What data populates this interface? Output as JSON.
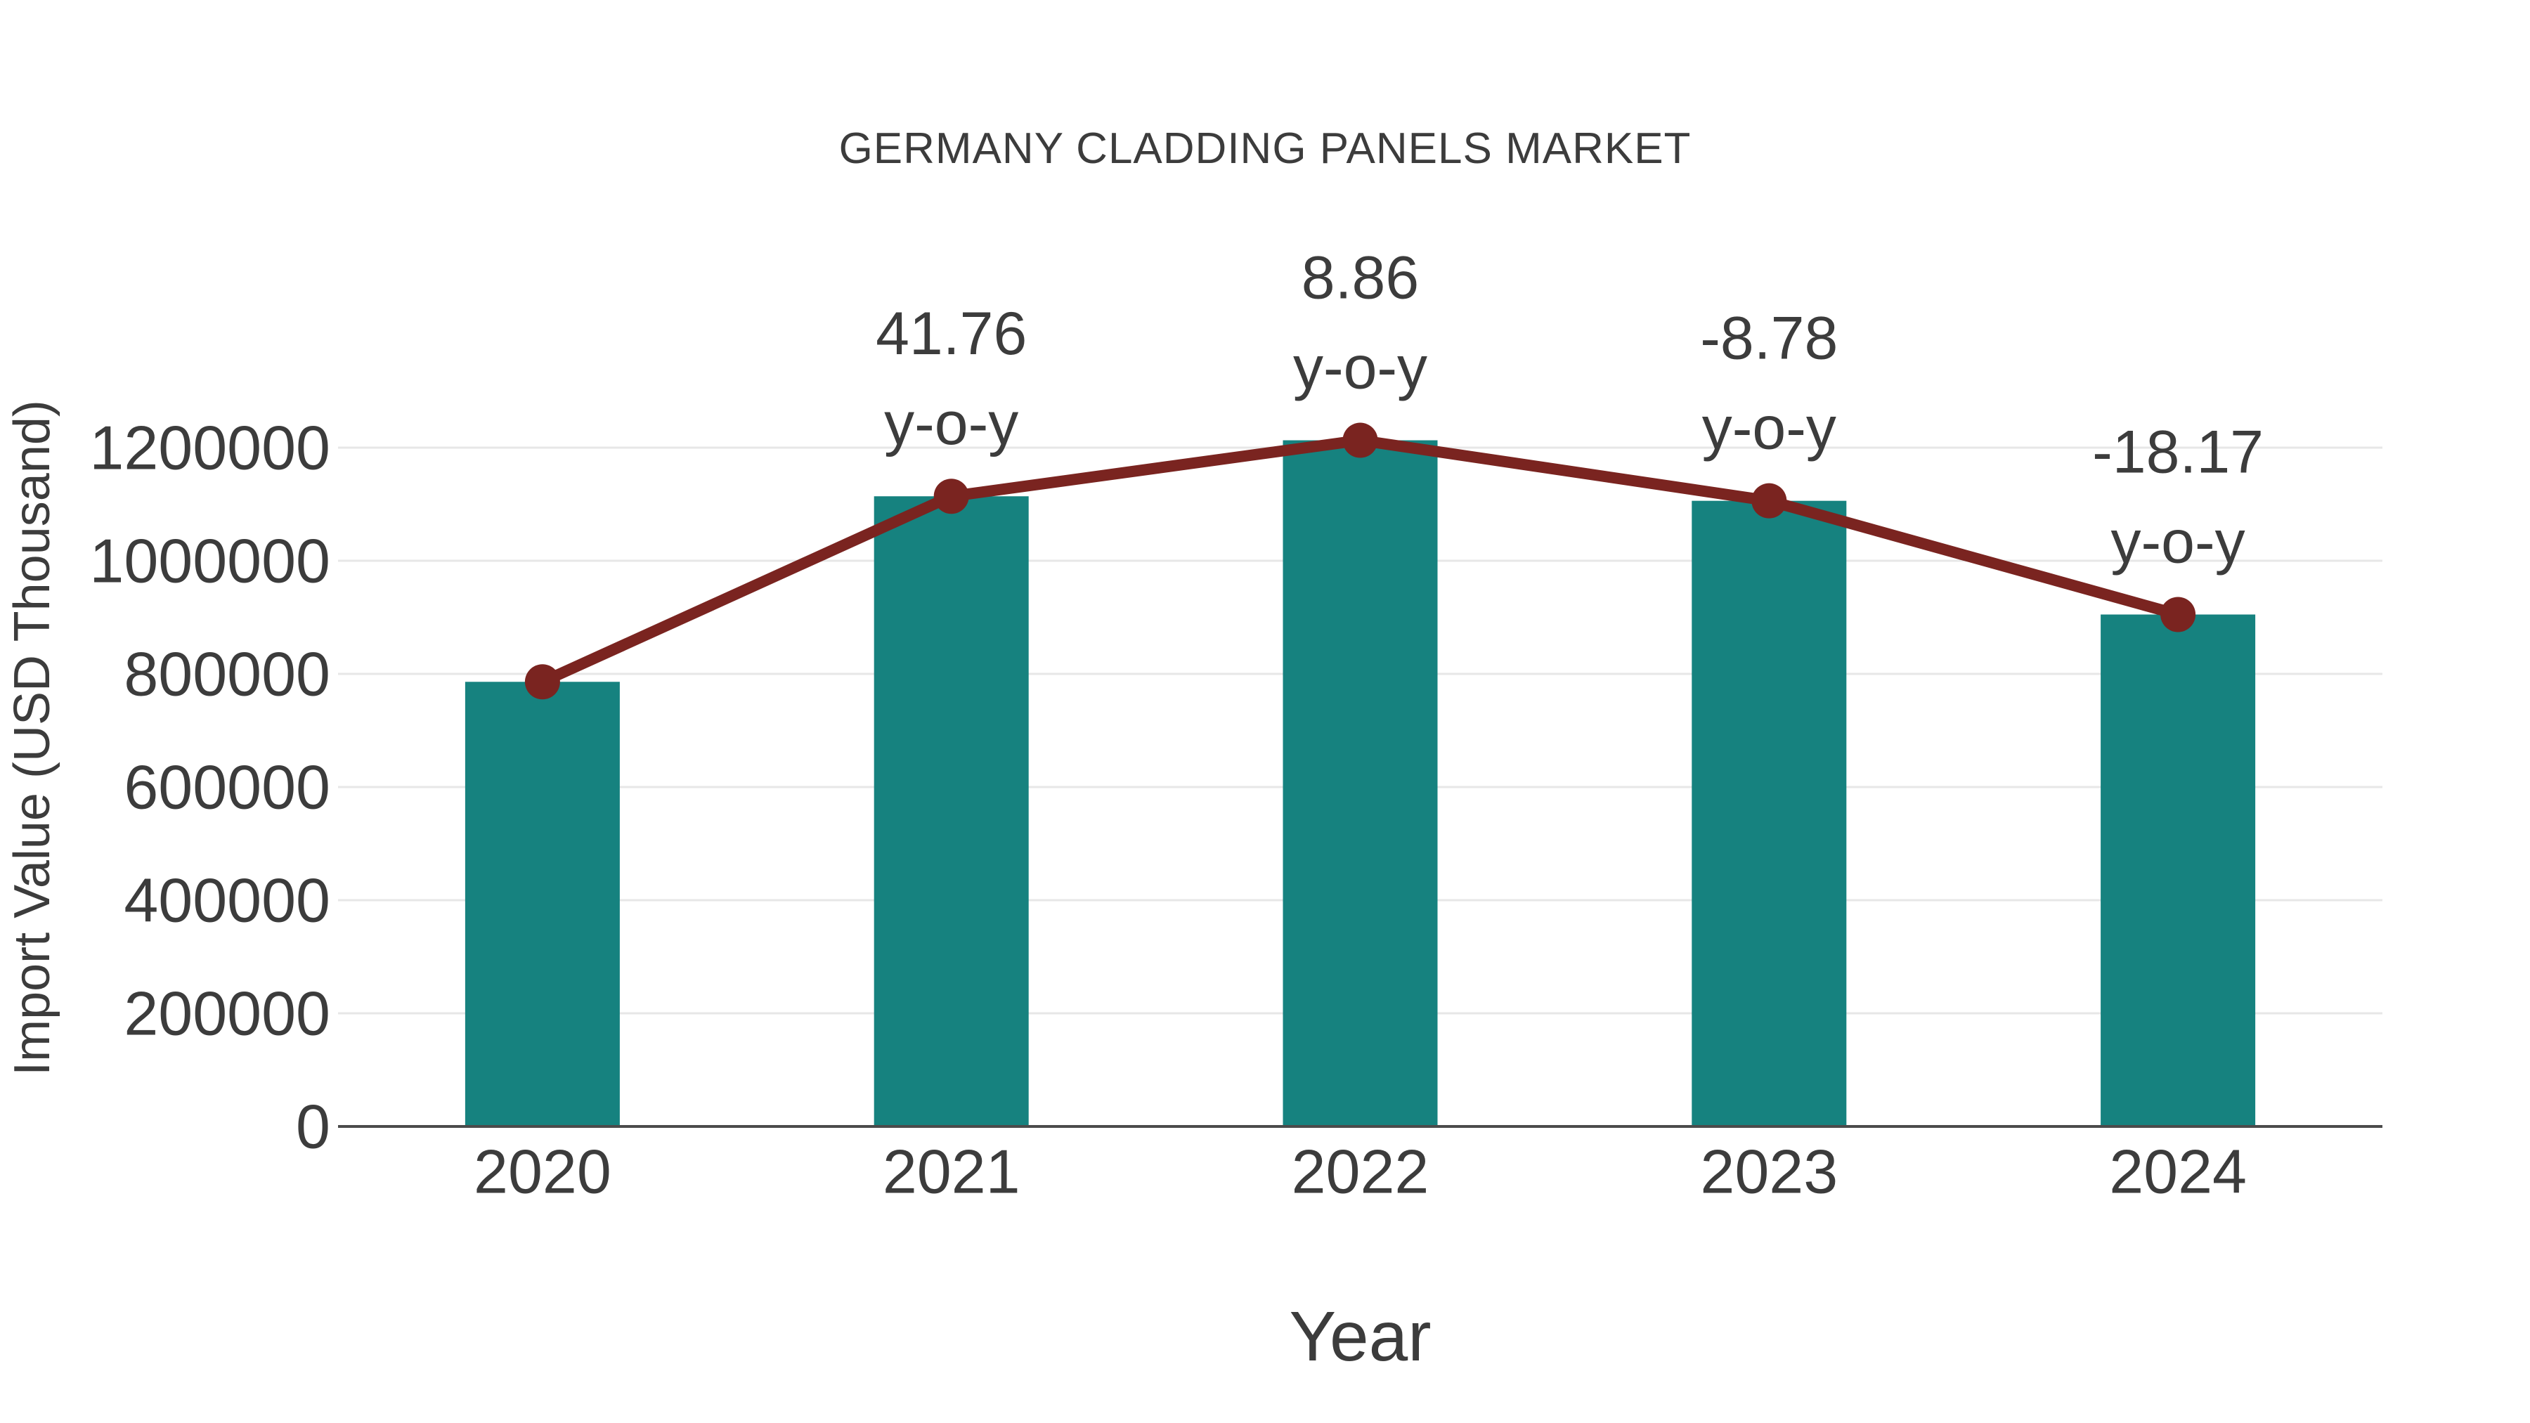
{
  "title": "GERMANY CLADDING PANELS MARKET",
  "chart_data": {
    "type": "bar",
    "overlay": "line",
    "title": "GERMANY CLADDING PANELS MARKET",
    "xlabel": "Year",
    "ylabel": "Import Value (USD Thousand)",
    "categories": [
      "2020",
      "2021",
      "2022",
      "2023",
      "2024"
    ],
    "values": [
      786000,
      1114000,
      1213000,
      1106000,
      905000
    ],
    "ylim": [
      0,
      1200000
    ],
    "ytick_step": 200000,
    "yticks": [
      0,
      200000,
      400000,
      600000,
      800000,
      1000000,
      1200000
    ],
    "ytick_labels": [
      "0",
      "200000",
      "400000",
      "600000",
      "800000",
      "1000000",
      "1200000"
    ],
    "grid": true,
    "legend": "none",
    "annotations": [
      {
        "category": "2021",
        "value": "41.76",
        "unit": "y-o-y"
      },
      {
        "category": "2022",
        "value": "8.86",
        "unit": "y-o-y"
      },
      {
        "category": "2023",
        "value": "-8.78",
        "unit": "y-o-y"
      },
      {
        "category": "2024",
        "value": "-18.17",
        "unit": "y-o-y"
      }
    ],
    "colors": {
      "bar": "#16827F",
      "line": "#7A2420",
      "marker": "#7A2420",
      "text": "#3C3C3C",
      "grid": "#E7E7E7",
      "axis": "#4B4B4B",
      "background": "#FFFFFF"
    }
  }
}
